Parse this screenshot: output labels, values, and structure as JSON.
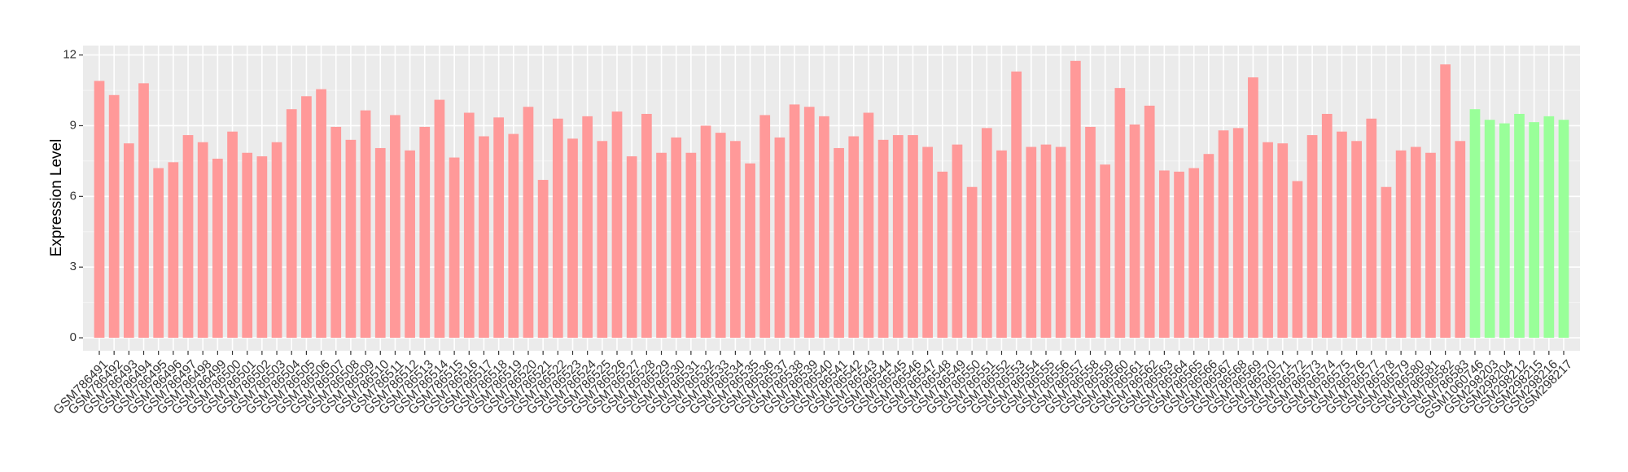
{
  "chart_data": {
    "type": "bar",
    "y_label": "Expression Level",
    "categories": [
      "GSM786491",
      "GSM786492",
      "GSM786493",
      "GSM786494",
      "GSM786495",
      "GSM786496",
      "GSM786497",
      "GSM786498",
      "GSM786499",
      "GSM786500",
      "GSM786501",
      "GSM786502",
      "GSM786503",
      "GSM786504",
      "GSM786505",
      "GSM786506",
      "GSM786507",
      "GSM786508",
      "GSM786509",
      "GSM786510",
      "GSM786511",
      "GSM786512",
      "GSM786513",
      "GSM786514",
      "GSM786515",
      "GSM786516",
      "GSM786517",
      "GSM786518",
      "GSM786519",
      "GSM786520",
      "GSM786521",
      "GSM786522",
      "GSM786523",
      "GSM786524",
      "GSM786525",
      "GSM786526",
      "GSM786527",
      "GSM786528",
      "GSM786529",
      "GSM786530",
      "GSM786531",
      "GSM786532",
      "GSM786533",
      "GSM786534",
      "GSM786535",
      "GSM786536",
      "GSM786537",
      "GSM786538",
      "GSM786539",
      "GSM786540",
      "GSM786541",
      "GSM786542",
      "GSM786543",
      "GSM786544",
      "GSM786545",
      "GSM786546",
      "GSM786547",
      "GSM786548",
      "GSM786549",
      "GSM786550",
      "GSM786551",
      "GSM786552",
      "GSM786553",
      "GSM786554",
      "GSM786555",
      "GSM786556",
      "GSM786557",
      "GSM786558",
      "GSM786559",
      "GSM786560",
      "GSM786561",
      "GSM786562",
      "GSM786563",
      "GSM786564",
      "GSM786565",
      "GSM786566",
      "GSM786567",
      "GSM786568",
      "GSM786569",
      "GSM786570",
      "GSM786571",
      "GSM786572",
      "GSM786573",
      "GSM786574",
      "GSM786575",
      "GSM786576",
      "GSM786577",
      "GSM786578",
      "GSM786579",
      "GSM786580",
      "GSM786581",
      "GSM786582",
      "GSM786583",
      "GSM1060746",
      "GSM298203",
      "GSM298204",
      "GSM298212",
      "GSM298215",
      "GSM298216",
      "GSM298217"
    ],
    "values": [
      10.9,
      10.3,
      8.25,
      10.8,
      7.2,
      7.45,
      8.6,
      8.3,
      7.6,
      8.75,
      7.85,
      7.7,
      8.3,
      9.7,
      10.25,
      10.55,
      8.95,
      8.4,
      9.65,
      8.05,
      9.45,
      7.95,
      8.95,
      10.1,
      7.65,
      9.55,
      8.55,
      9.35,
      8.65,
      9.8,
      6.7,
      9.3,
      8.45,
      9.4,
      8.35,
      9.6,
      7.7,
      9.5,
      7.85,
      8.5,
      7.85,
      9.0,
      8.7,
      8.35,
      7.4,
      9.45,
      8.5,
      9.9,
      9.8,
      9.4,
      8.05,
      8.55,
      9.55,
      8.4,
      8.6,
      8.6,
      8.1,
      7.05,
      8.2,
      6.4,
      8.9,
      7.95,
      11.3,
      8.1,
      8.2,
      8.1,
      11.75,
      8.95,
      7.35,
      10.6,
      9.05,
      9.85,
      7.1,
      7.05,
      7.2,
      7.8,
      8.8,
      8.9,
      11.05,
      8.3,
      8.25,
      6.65,
      8.6,
      9.5,
      8.75,
      8.35,
      9.3,
      6.4,
      7.95,
      8.1,
      7.85,
      11.6,
      8.35,
      9.7,
      9.25,
      9.1,
      9.5,
      9.15,
      9.4,
      9.25
    ],
    "colors": [
      "#ff9999",
      "#ff9999",
      "#ff9999",
      "#ff9999",
      "#ff9999",
      "#ff9999",
      "#ff9999",
      "#ff9999",
      "#ff9999",
      "#ff9999",
      "#ff9999",
      "#ff9999",
      "#ff9999",
      "#ff9999",
      "#ff9999",
      "#ff9999",
      "#ff9999",
      "#ff9999",
      "#ff9999",
      "#ff9999",
      "#ff9999",
      "#ff9999",
      "#ff9999",
      "#ff9999",
      "#ff9999",
      "#ff9999",
      "#ff9999",
      "#ff9999",
      "#ff9999",
      "#ff9999",
      "#ff9999",
      "#ff9999",
      "#ff9999",
      "#ff9999",
      "#ff9999",
      "#ff9999",
      "#ff9999",
      "#ff9999",
      "#ff9999",
      "#ff9999",
      "#ff9999",
      "#ff9999",
      "#ff9999",
      "#ff9999",
      "#ff9999",
      "#ff9999",
      "#ff9999",
      "#ff9999",
      "#ff9999",
      "#ff9999",
      "#ff9999",
      "#ff9999",
      "#ff9999",
      "#ff9999",
      "#ff9999",
      "#ff9999",
      "#ff9999",
      "#ff9999",
      "#ff9999",
      "#ff9999",
      "#ff9999",
      "#ff9999",
      "#ff9999",
      "#ff9999",
      "#ff9999",
      "#ff9999",
      "#ff9999",
      "#ff9999",
      "#ff9999",
      "#ff9999",
      "#ff9999",
      "#ff9999",
      "#ff9999",
      "#ff9999",
      "#ff9999",
      "#ff9999",
      "#ff9999",
      "#ff9999",
      "#ff9999",
      "#ff9999",
      "#ff9999",
      "#ff9999",
      "#ff9999",
      "#ff9999",
      "#ff9999",
      "#ff9999",
      "#ff9999",
      "#ff9999",
      "#ff9999",
      "#ff9999",
      "#ff9999",
      "#ff9999",
      "#ff9999",
      "#99ff99",
      "#99ff99",
      "#99ff99",
      "#99ff99",
      "#99ff99",
      "#99ff99",
      "#99ff99"
    ],
    "ylim": [
      -0.55,
      12.4
    ],
    "yticks": [
      0,
      3,
      6,
      9,
      12
    ],
    "grid": true
  }
}
